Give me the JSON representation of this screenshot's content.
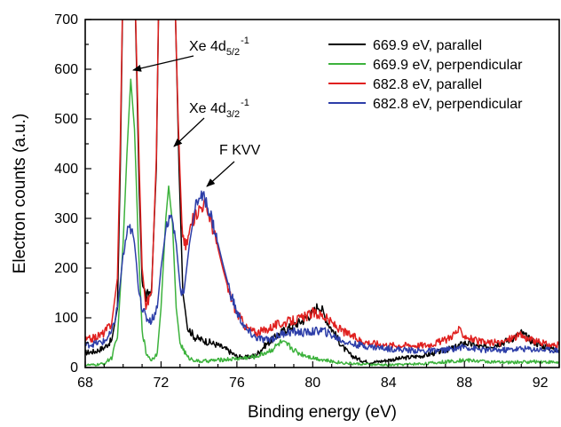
{
  "chart_data": {
    "type": "line",
    "xlabel": "Binding energy (eV)",
    "ylabel": "Electron counts (a.u.)",
    "xlim": [
      68,
      93
    ],
    "ylim": [
      0,
      700
    ],
    "xticks": [
      68,
      72,
      76,
      80,
      84,
      88,
      92
    ],
    "yticks": [
      0,
      100,
      200,
      300,
      400,
      500,
      600,
      700
    ],
    "grid": false,
    "legend_position": "top-right",
    "annotations": [
      {
        "base": "Xe 4d",
        "sub": "5/2",
        "sup": "-1",
        "x": 70.4,
        "y": 600
      },
      {
        "base": "Xe 4d",
        "sub": "3/2",
        "sup": "-1",
        "x": 72.5,
        "y": 440
      },
      {
        "base": "F KVV",
        "sub": "",
        "sup": "",
        "x": 74.2,
        "y": 345
      }
    ],
    "series": [
      {
        "name": "669.9 eV, parallel",
        "color": "#000000",
        "points": [
          [
            68,
            30
          ],
          [
            68.5,
            32
          ],
          [
            69,
            40
          ],
          [
            69.4,
            55
          ],
          [
            69.7,
            120
          ],
          [
            69.85,
            400
          ],
          [
            70.0,
            800
          ],
          [
            70.6,
            800
          ],
          [
            70.85,
            350
          ],
          [
            71.0,
            180
          ],
          [
            71.2,
            140
          ],
          [
            71.5,
            160
          ],
          [
            71.75,
            400
          ],
          [
            71.9,
            800
          ],
          [
            72.7,
            800
          ],
          [
            72.95,
            400
          ],
          [
            73.15,
            150
          ],
          [
            73.4,
            80
          ],
          [
            73.8,
            60
          ],
          [
            74.2,
            55
          ],
          [
            74.6,
            50
          ],
          [
            75,
            45
          ],
          [
            75.5,
            35
          ],
          [
            76,
            22
          ],
          [
            76.5,
            20
          ],
          [
            77,
            25
          ],
          [
            77.5,
            45
          ],
          [
            78,
            60
          ],
          [
            78.5,
            75
          ],
          [
            79,
            85
          ],
          [
            79.5,
            95
          ],
          [
            80,
            110
          ],
          [
            80.3,
            125
          ],
          [
            80.5,
            115
          ],
          [
            80.8,
            90
          ],
          [
            81.2,
            65
          ],
          [
            81.6,
            40
          ],
          [
            82,
            25
          ],
          [
            82.5,
            15
          ],
          [
            83,
            10
          ],
          [
            83.5,
            12
          ],
          [
            84,
            15
          ],
          [
            85,
            20
          ],
          [
            86,
            25
          ],
          [
            87,
            35
          ],
          [
            87.5,
            40
          ],
          [
            88,
            50
          ],
          [
            88.5,
            45
          ],
          [
            89,
            40
          ],
          [
            90,
            50
          ],
          [
            90.5,
            58
          ],
          [
            91,
            70
          ],
          [
            91.5,
            55
          ],
          [
            92,
            45
          ],
          [
            92.5,
            40
          ],
          [
            93,
            35
          ]
        ]
      },
      {
        "name": "669.9 eV, perpendicular",
        "color": "#3cb23c",
        "points": [
          [
            68,
            5
          ],
          [
            68.5,
            5
          ],
          [
            69,
            8
          ],
          [
            69.4,
            20
          ],
          [
            69.7,
            60
          ],
          [
            70.0,
            250
          ],
          [
            70.2,
            430
          ],
          [
            70.4,
            580
          ],
          [
            70.6,
            480
          ],
          [
            70.8,
            250
          ],
          [
            71.0,
            80
          ],
          [
            71.2,
            30
          ],
          [
            71.5,
            15
          ],
          [
            71.8,
            30
          ],
          [
            72.0,
            120
          ],
          [
            72.25,
            300
          ],
          [
            72.4,
            365
          ],
          [
            72.6,
            290
          ],
          [
            72.8,
            120
          ],
          [
            73.0,
            50
          ],
          [
            73.4,
            20
          ],
          [
            74,
            12
          ],
          [
            75,
            15
          ],
          [
            76,
            18
          ],
          [
            77,
            22
          ],
          [
            77.8,
            35
          ],
          [
            78.3,
            50
          ],
          [
            78.7,
            45
          ],
          [
            79.2,
            30
          ],
          [
            80,
            20
          ],
          [
            81,
            12
          ],
          [
            82,
            8
          ],
          [
            83,
            6
          ],
          [
            84,
            5
          ],
          [
            86,
            8
          ],
          [
            88,
            15
          ],
          [
            90,
            10
          ],
          [
            92,
            12
          ],
          [
            93,
            10
          ]
        ]
      },
      {
        "name": "682.8 eV, parallel",
        "color": "#e0201f",
        "points": [
          [
            68,
            55
          ],
          [
            68.5,
            60
          ],
          [
            69,
            70
          ],
          [
            69.4,
            90
          ],
          [
            69.7,
            180
          ],
          [
            69.85,
            450
          ],
          [
            70.0,
            800
          ],
          [
            70.6,
            800
          ],
          [
            70.85,
            400
          ],
          [
            71.0,
            200
          ],
          [
            71.2,
            125
          ],
          [
            71.5,
            150
          ],
          [
            71.75,
            420
          ],
          [
            71.9,
            800
          ],
          [
            72.7,
            800
          ],
          [
            72.9,
            500
          ],
          [
            73.1,
            280
          ],
          [
            73.3,
            240
          ],
          [
            73.6,
            290
          ],
          [
            74.0,
            320
          ],
          [
            74.3,
            330
          ],
          [
            74.6,
            300
          ],
          [
            75,
            240
          ],
          [
            75.5,
            160
          ],
          [
            76,
            110
          ],
          [
            76.5,
            80
          ],
          [
            77,
            70
          ],
          [
            77.5,
            75
          ],
          [
            78,
            85
          ],
          [
            78.5,
            90
          ],
          [
            79,
            95
          ],
          [
            79.5,
            100
          ],
          [
            80,
            110
          ],
          [
            80.5,
            105
          ],
          [
            81,
            90
          ],
          [
            81.5,
            75
          ],
          [
            82,
            65
          ],
          [
            82.5,
            55
          ],
          [
            83,
            50
          ],
          [
            84,
            45
          ],
          [
            85,
            45
          ],
          [
            86,
            45
          ],
          [
            87,
            55
          ],
          [
            87.7,
            75
          ],
          [
            88,
            65
          ],
          [
            88.5,
            55
          ],
          [
            89,
            50
          ],
          [
            90,
            50
          ],
          [
            90.5,
            60
          ],
          [
            91,
            65
          ],
          [
            91.5,
            55
          ],
          [
            92,
            50
          ],
          [
            92.5,
            45
          ],
          [
            93,
            45
          ]
        ]
      },
      {
        "name": "682.8 eV, perpendicular",
        "color": "#2d3ea8",
        "points": [
          [
            68,
            45
          ],
          [
            68.5,
            48
          ],
          [
            69,
            52
          ],
          [
            69.4,
            70
          ],
          [
            69.7,
            120
          ],
          [
            70.0,
            220
          ],
          [
            70.2,
            270
          ],
          [
            70.4,
            280
          ],
          [
            70.6,
            250
          ],
          [
            70.8,
            170
          ],
          [
            71.0,
            120
          ],
          [
            71.2,
            100
          ],
          [
            71.5,
            95
          ],
          [
            71.8,
            120
          ],
          [
            72.0,
            200
          ],
          [
            72.3,
            290
          ],
          [
            72.55,
            305
          ],
          [
            72.8,
            250
          ],
          [
            73.0,
            160
          ],
          [
            73.2,
            150
          ],
          [
            73.5,
            250
          ],
          [
            73.8,
            320
          ],
          [
            74.0,
            345
          ],
          [
            74.3,
            340
          ],
          [
            74.6,
            310
          ],
          [
            75,
            250
          ],
          [
            75.5,
            170
          ],
          [
            76,
            110
          ],
          [
            76.5,
            75
          ],
          [
            77,
            60
          ],
          [
            77.5,
            55
          ],
          [
            78,
            60
          ],
          [
            78.5,
            70
          ],
          [
            79,
            72
          ],
          [
            79.5,
            70
          ],
          [
            80,
            72
          ],
          [
            80.5,
            75
          ],
          [
            81,
            65
          ],
          [
            81.5,
            55
          ],
          [
            82,
            48
          ],
          [
            83,
            42
          ],
          [
            84,
            38
          ],
          [
            85,
            35
          ],
          [
            86,
            33
          ],
          [
            87,
            35
          ],
          [
            88,
            42
          ],
          [
            88.5,
            38
          ],
          [
            89,
            35
          ],
          [
            90,
            35
          ],
          [
            91,
            38
          ],
          [
            92,
            36
          ],
          [
            93,
            35
          ]
        ]
      }
    ]
  }
}
